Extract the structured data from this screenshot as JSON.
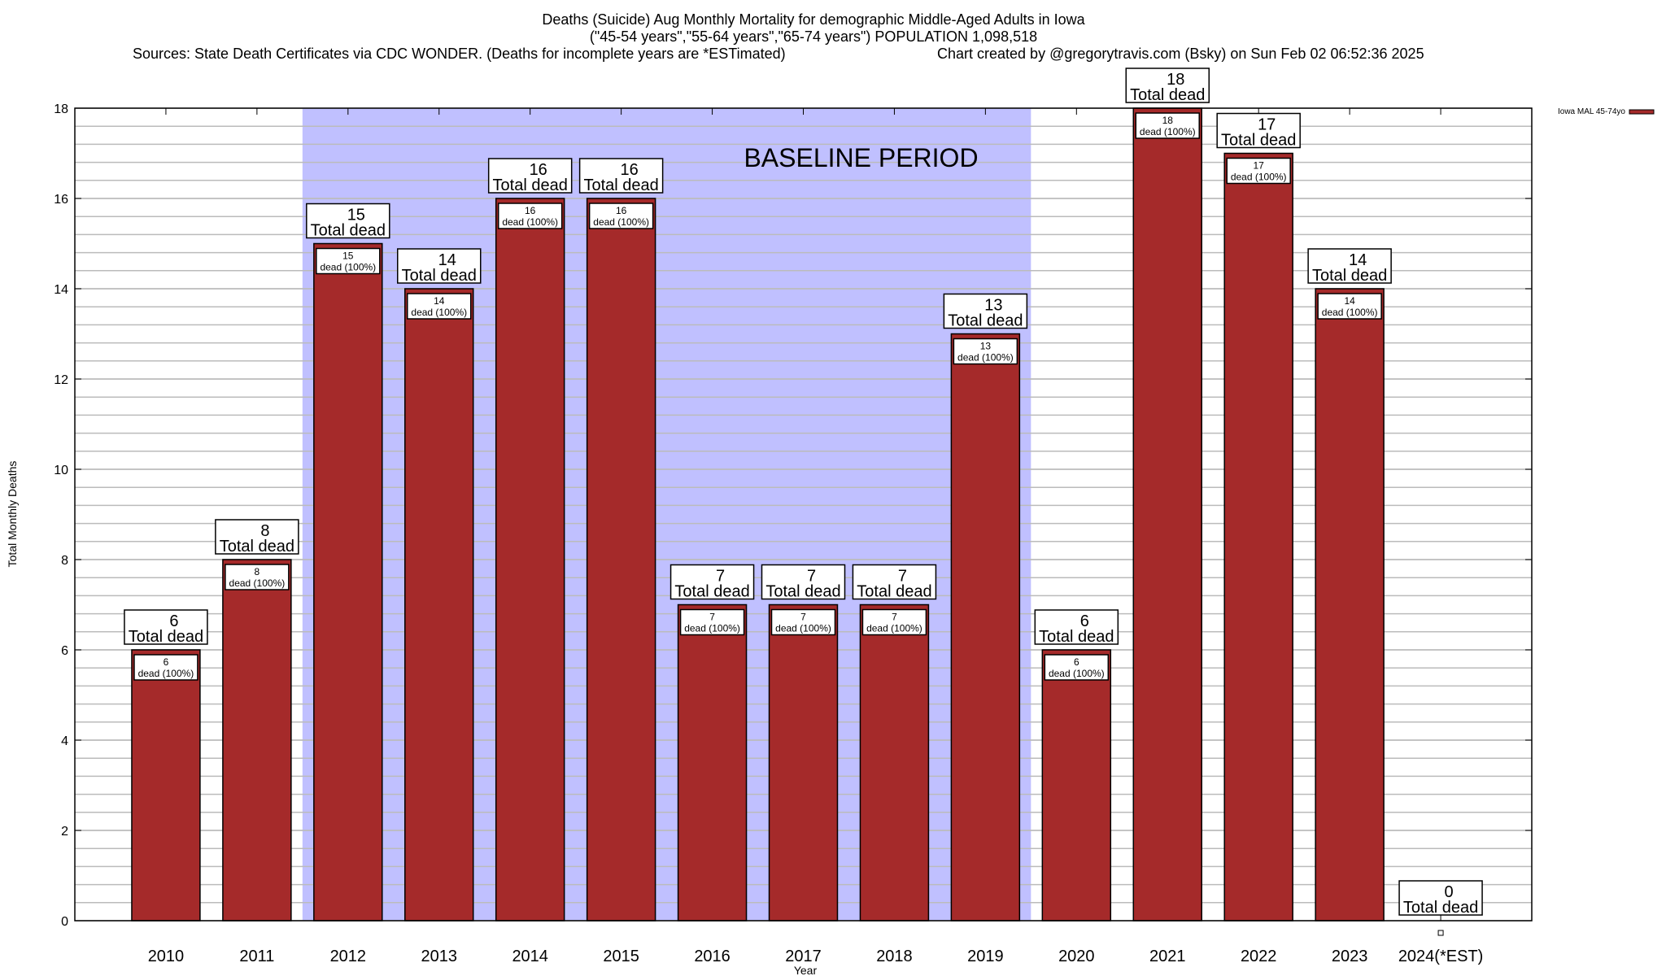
{
  "chart_data": {
    "type": "bar",
    "title": "Deaths (Suicide) Aug Monthly Mortality for demographic Middle-Aged Adults in Iowa",
    "subtitle": "(\"45-54 years\",\"55-64 years\",\"65-74 years\") POPULATION 1,098,518",
    "sources": "Sources: State Death Certificates via CDC WONDER. (Deaths for incomplete years are *ESTimated)",
    "credit": "Chart created by @gregorytravis.com (Bsky) on Sun Feb 02 06:52:36 2025",
    "xlabel": "Year",
    "ylabel": "Total Monthly Deaths",
    "ylim": [
      0,
      18
    ],
    "yticks": [
      0,
      2,
      4,
      6,
      8,
      10,
      12,
      14,
      16,
      18
    ],
    "minor_grid_step": 0.4,
    "grid": true,
    "legend_placement": "top-right, outside plot",
    "categories": [
      "2010",
      "2011",
      "2012",
      "2013",
      "2014",
      "2015",
      "2016",
      "2017",
      "2018",
      "2019",
      "2020",
      "2021",
      "2022",
      "2023",
      "2024(*EST)"
    ],
    "series": [
      {
        "name": "Iowa MAL 45-74yo",
        "color": "#a52a2a",
        "values": [
          6,
          8,
          15,
          14,
          16,
          16,
          7,
          7,
          7,
          13,
          6,
          18,
          17,
          14,
          0
        ]
      }
    ],
    "total_label_suffix": "Total dead",
    "inner_label_suffix": "dead (100%)",
    "baseline": {
      "label": "BASELINE PERIOD",
      "from": "2012",
      "to": "2019",
      "color": "#c0c0ff"
    }
  }
}
